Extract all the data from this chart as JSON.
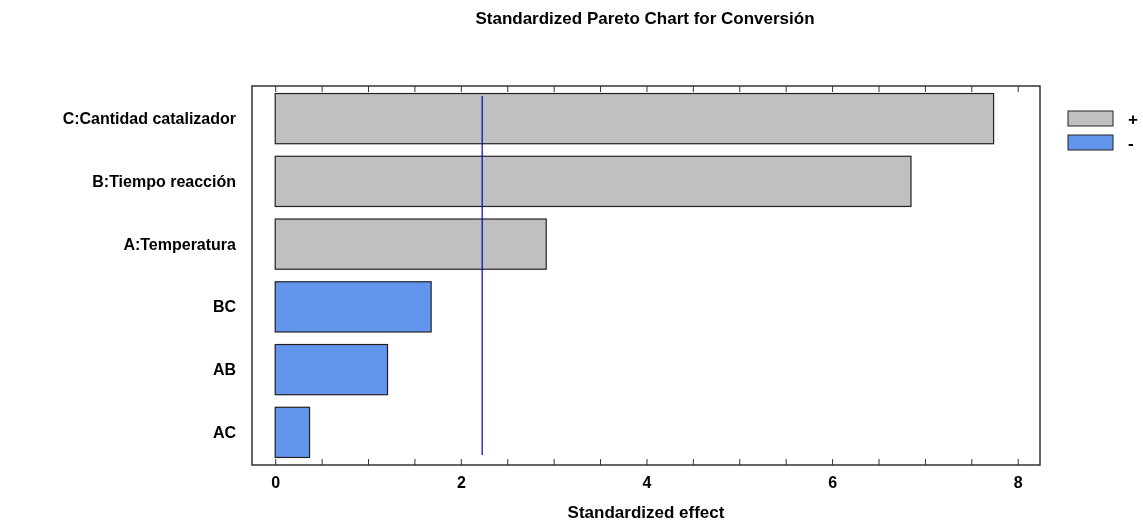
{
  "chart_data": {
    "type": "bar",
    "title": "Standardized Pareto Chart for Conversión",
    "xlabel": "Standardized effect",
    "orientation": "horizontal",
    "categories": [
      "C:Cantidad catalizador",
      "B:Tiempo reacción",
      "A:Temperatura",
      "BC",
      "AB",
      "AC"
    ],
    "series": [
      {
        "name": "+",
        "color": "#c0c0c0",
        "values": [
          7.74,
          6.85,
          2.92,
          null,
          null,
          null
        ]
      },
      {
        "name": "-",
        "color": "#6495ed",
        "values": [
          null,
          null,
          null,
          1.68,
          1.21,
          0.37
        ]
      }
    ],
    "xlim": [
      -0.25,
      8.24
    ],
    "xticks": [
      0,
      {
        "value": 0.5,
        "label": null
      },
      {
        "value": 1,
        "label": null
      },
      {
        "value": 1.5,
        "label": null
      },
      2,
      {
        "value": 2.5,
        "label": null
      },
      {
        "value": 3,
        "label": null
      },
      {
        "value": 3.5,
        "label": null
      },
      4,
      {
        "value": 4.5,
        "label": null
      },
      {
        "value": 5,
        "label": null
      },
      {
        "value": 5.5,
        "label": null
      },
      6,
      {
        "value": 6.5,
        "label": null
      },
      {
        "value": 7,
        "label": null
      },
      {
        "value": 7.5,
        "label": null
      },
      8
    ],
    "ref_lines": [
      {
        "axis": "x",
        "value": 2.23,
        "color": "#0000cc"
      }
    ],
    "legend": "top right",
    "grid": false
  }
}
